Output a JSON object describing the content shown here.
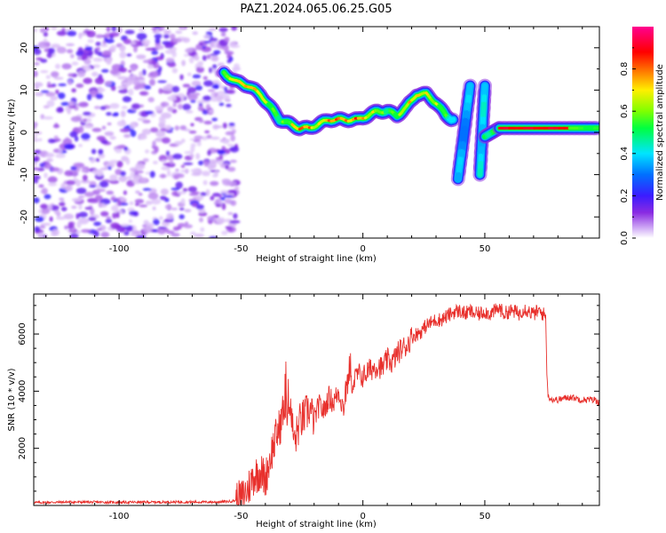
{
  "title": "PAZ1.2024.065.06.25.G05",
  "chart_data": [
    {
      "type": "heatmap",
      "xlabel": "Height of straight line (km)",
      "ylabel": "Frequency (Hz)",
      "xlim": [
        -135,
        97
      ],
      "ylim": [
        -25,
        25
      ],
      "xticks": [
        -100,
        -50,
        0,
        50
      ],
      "yticks": [
        -20,
        -10,
        0,
        10,
        20
      ],
      "x_tick_labels": [
        "-100",
        "-50",
        "0",
        "50"
      ],
      "y_tick_labels": [
        "-20",
        "-10",
        "0",
        "10",
        "20"
      ],
      "colorbar": {
        "label": "Normalized spectral amplitude",
        "range": [
          0,
          1
        ],
        "ticks": [
          0.0,
          0.2,
          0.4,
          0.6,
          0.8
        ],
        "tick_labels": [
          "0.0",
          "0.2",
          "0.4",
          "0.6",
          "0.8"
        ],
        "colormap": "rainbow (white-purple-blue-cyan-green-yellow-red-magenta)"
      },
      "noise_region": {
        "x_range": [
          -135,
          -53
        ],
        "level": 0.15
      },
      "ridge": {
        "x": [
          -57,
          -52,
          -47,
          -42,
          -38,
          -34,
          -30,
          -26,
          -22,
          -18,
          -14,
          -10,
          -6,
          -2,
          2,
          6,
          10,
          14,
          18,
          22,
          26,
          30,
          34,
          37
        ],
        "y": [
          14,
          12,
          11,
          9,
          6,
          3,
          2,
          1,
          1,
          2,
          3,
          3,
          3,
          3,
          4,
          5,
          5,
          4,
          6,
          9,
          9,
          7,
          4,
          3
        ],
        "amplitude": [
          0.6,
          0.75,
          0.8,
          0.75,
          0.6,
          0.55,
          0.6,
          0.85,
          0.8,
          0.65,
          0.8,
          0.85,
          0.75,
          0.85,
          0.7,
          0.65,
          0.55,
          0.6,
          0.7,
          0.75,
          0.7,
          0.65,
          0.55,
          0.45
        ]
      },
      "aliased_segments": [
        {
          "x": [
            39,
            44
          ],
          "y": [
            -11,
            11
          ],
          "amplitude": 0.35
        },
        {
          "x": [
            48,
            50
          ],
          "y": [
            -10,
            11
          ],
          "amplitude": 0.4
        },
        {
          "x": [
            50,
            56
          ],
          "y": [
            -1,
            1
          ],
          "amplitude": 0.5
        }
      ],
      "flat_line": {
        "x_range": [
          56,
          97
        ],
        "y": 1,
        "amplitude": 0.9
      }
    },
    {
      "type": "line",
      "xlabel": "Height of straight line (km)",
      "ylabel": "SNR (10 * v/v)",
      "xlim": [
        -135,
        97
      ],
      "ylim": [
        0,
        7400
      ],
      "xticks": [
        -100,
        -50,
        0,
        50
      ],
      "yticks": [
        2000,
        4000,
        6000
      ],
      "x_tick_labels": [
        "-100",
        "-50",
        "0",
        "50"
      ],
      "y_tick_labels": [
        "2000",
        "4000",
        "6000"
      ],
      "color": "#e8302c",
      "series": [
        {
          "x": [
            -135,
            -120,
            -100,
            -80,
            -60,
            -55,
            -50,
            -47,
            -45,
            -42,
            -40,
            -38,
            -36,
            -34,
            -32,
            -30,
            -28,
            -26,
            -24,
            -22,
            -20,
            -18,
            -16,
            -14,
            -12,
            -10,
            -8,
            -6,
            -4,
            -2,
            0,
            2,
            4,
            6,
            8,
            10,
            12,
            14,
            16,
            18,
            20,
            22,
            24,
            26,
            28,
            30,
            32,
            34,
            36,
            38,
            40,
            42,
            44,
            46,
            48,
            50,
            52,
            54,
            56,
            58,
            60,
            62,
            64,
            66,
            68,
            70,
            72,
            74,
            75,
            75.5,
            76,
            78,
            80,
            85,
            90,
            95,
            97
          ],
          "y": [
            100,
            120,
            110,
            120,
            120,
            140,
            200,
            600,
            1000,
            1200,
            900,
            1700,
            2300,
            2800,
            3200,
            3400,
            2200,
            2900,
            3100,
            3400,
            3000,
            3500,
            3300,
            3800,
            3600,
            4000,
            3400,
            4400,
            4300,
            4600,
            4500,
            4700,
            4800,
            4900,
            4800,
            5100,
            5000,
            5300,
            5500,
            5600,
            5900,
            6000,
            6100,
            6300,
            6400,
            6500,
            6500,
            6600,
            6700,
            6800,
            6800,
            6700,
            6800,
            6700,
            6700,
            6800,
            6700,
            6800,
            6900,
            6700,
            6800,
            6800,
            6700,
            6900,
            6800,
            6700,
            6800,
            6700,
            6600,
            4500,
            3800,
            3700,
            3700,
            3800,
            3700,
            3700,
            3600
          ]
        }
      ]
    }
  ]
}
